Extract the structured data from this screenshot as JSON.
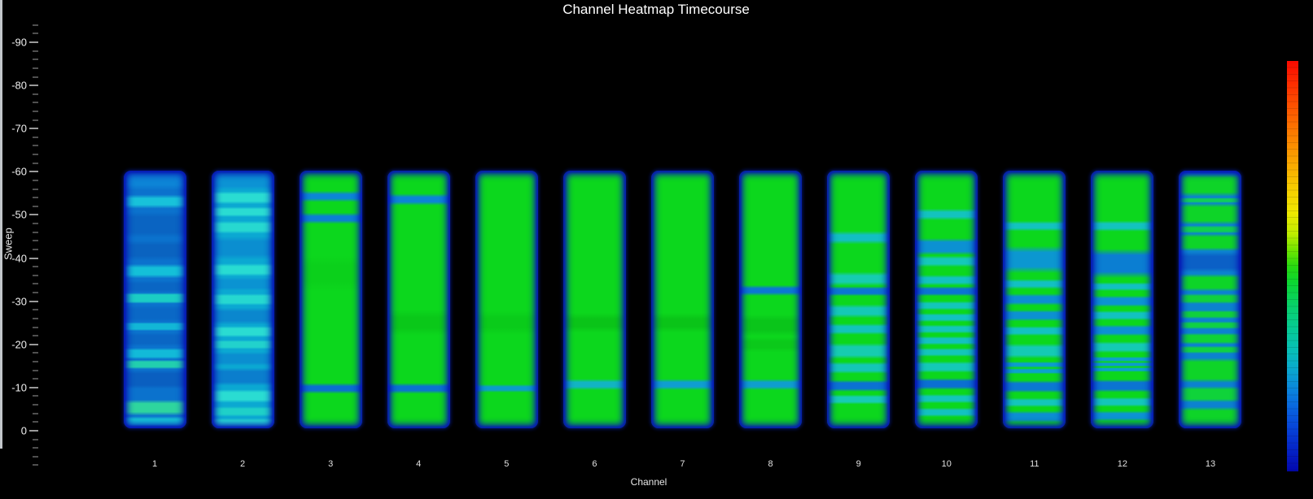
{
  "title": "Channel Heatmap Timecourse",
  "axes": {
    "y_label": "Sweep",
    "x_label": "Channel",
    "y_ticks": [
      "-90",
      "-80",
      "-70",
      "-60",
      "-50",
      "-40",
      "-30",
      "-20",
      "-10",
      "0"
    ],
    "x_ticks": [
      "1",
      "2",
      "3",
      "4",
      "5",
      "6",
      "7",
      "8",
      "9",
      "10",
      "11",
      "12",
      "13"
    ],
    "y_direction": "reversed",
    "y_minor_per_major": 5
  },
  "colorbar": {
    "position": "right",
    "colormap": "jet (red = high, dark blue = low)",
    "stops": [
      {
        "p": 0,
        "c": "#fa0a00"
      },
      {
        "p": 5,
        "c": "#fc2a00"
      },
      {
        "p": 11,
        "c": "#fc5200"
      },
      {
        "p": 18,
        "c": "#fb7e00"
      },
      {
        "p": 25,
        "c": "#faa800"
      },
      {
        "p": 31,
        "c": "#f6cc00"
      },
      {
        "p": 37,
        "c": "#eee800"
      },
      {
        "p": 42,
        "c": "#c0ec00"
      },
      {
        "p": 46,
        "c": "#72e400"
      },
      {
        "p": 50,
        "c": "#28da10"
      },
      {
        "p": 54,
        "c": "#0cd632"
      },
      {
        "p": 60,
        "c": "#08d06e"
      },
      {
        "p": 66,
        "c": "#06ca9a"
      },
      {
        "p": 71,
        "c": "#08beba"
      },
      {
        "p": 76,
        "c": "#0aa2d2"
      },
      {
        "p": 81,
        "c": "#0a7ede"
      },
      {
        "p": 86,
        "c": "#085ade"
      },
      {
        "p": 91,
        "c": "#063ad4"
      },
      {
        "p": 96,
        "c": "#041cc0"
      },
      {
        "p": 100,
        "c": "#0208ae"
      }
    ]
  },
  "chart_data": {
    "type": "heatmap",
    "title": "Channel Heatmap Timecourse",
    "xlabel": "Channel",
    "ylabel": "Sweep",
    "x": [
      1,
      2,
      3,
      4,
      5,
      6,
      7,
      8,
      9,
      10,
      11,
      12,
      13
    ],
    "ylim_axis": [
      -94,
      9
    ],
    "data_sweep_extent": [
      -60,
      0
    ],
    "grid": false,
    "legend_position": "none",
    "colormap": "jet, red=high / blue=low; band positions given as fraction of column (0=sweep -60 top, 1=sweep 0 bottom)",
    "columns": [
      {
        "channel": 1,
        "base": "#0b72cd",
        "bands": [
          {
            "at": 0.03,
            "w": 0.025,
            "c": "#0d84d6",
            "s": 0.02
          },
          {
            "at": 0.12,
            "w": 0.012,
            "c": "#18c2da",
            "s": 0.015
          },
          {
            "at": 0.21,
            "w": 0.03,
            "c": "#0a64c2",
            "s": 0.02
          },
          {
            "at": 0.31,
            "w": 0.02,
            "c": "#0a63c0",
            "s": 0.02
          },
          {
            "at": 0.39,
            "w": 0.013,
            "c": "#14c0d8",
            "s": 0.015
          },
          {
            "at": 0.45,
            "w": 0.012,
            "c": "#0a66c4",
            "s": 0.012
          },
          {
            "at": 0.495,
            "w": 0.013,
            "c": "#1bcdc4",
            "s": 0.008
          },
          {
            "at": 0.555,
            "w": 0.018,
            "c": "#0a68c6",
            "s": 0.015
          },
          {
            "at": 0.605,
            "w": 0.01,
            "c": "#12b6d6",
            "s": 0.007
          },
          {
            "at": 0.655,
            "w": 0.015,
            "c": "#0a66c4",
            "s": 0.012
          },
          {
            "at": 0.71,
            "w": 0.012,
            "c": "#12bad8",
            "s": 0.01
          },
          {
            "at": 0.752,
            "w": 0.01,
            "c": "#22cfae",
            "s": 0.008
          },
          {
            "at": 0.81,
            "w": 0.022,
            "c": "#0a5fc0",
            "s": 0.015
          },
          {
            "at": 0.92,
            "w": 0.016,
            "c": "#2ed59e",
            "s": 0.015
          },
          {
            "at": 0.975,
            "w": 0.01,
            "c": "#16c4d4",
            "s": 0.012
          }
        ]
      },
      {
        "channel": 2,
        "base": "#0ba8d2",
        "bands": [
          {
            "at": 0.04,
            "w": 0.02,
            "c": "#0c93d4",
            "s": 0.015
          },
          {
            "at": 0.105,
            "w": 0.013,
            "c": "#2adcd2",
            "s": 0.012
          },
          {
            "at": 0.16,
            "w": 0.01,
            "c": "#2adcd2",
            "s": 0.01
          },
          {
            "at": 0.22,
            "w": 0.013,
            "c": "#27d8d0",
            "s": 0.012
          },
          {
            "at": 0.3,
            "w": 0.025,
            "c": "#0b8ed0",
            "s": 0.02
          },
          {
            "at": 0.385,
            "w": 0.013,
            "c": "#28dcd2",
            "s": 0.012
          },
          {
            "at": 0.44,
            "w": 0.014,
            "c": "#0b93d2",
            "s": 0.012
          },
          {
            "at": 0.5,
            "w": 0.013,
            "c": "#26d8d0",
            "s": 0.01
          },
          {
            "at": 0.565,
            "w": 0.018,
            "c": "#0b87ce",
            "s": 0.015
          },
          {
            "at": 0.625,
            "w": 0.012,
            "c": "#2adcd2",
            "s": 0.01
          },
          {
            "at": 0.675,
            "w": 0.01,
            "c": "#22d2cc",
            "s": 0.008
          },
          {
            "at": 0.73,
            "w": 0.015,
            "c": "#0b8ed0",
            "s": 0.012
          },
          {
            "at": 0.8,
            "w": 0.02,
            "c": "#0b7ecd",
            "s": 0.015
          },
          {
            "at": 0.875,
            "w": 0.014,
            "c": "#2adcd2",
            "s": 0.012
          },
          {
            "at": 0.935,
            "w": 0.01,
            "c": "#1fd0c8",
            "s": 0.01
          },
          {
            "at": 0.98,
            "w": 0.01,
            "c": "#28dcd2",
            "s": 0.01
          }
        ]
      },
      {
        "channel": 3,
        "base": "#0cd71d",
        "bands": [
          {
            "at": 0.1,
            "w": 0.008,
            "c": "#0c86d6",
            "s": 0.014
          },
          {
            "at": 0.185,
            "w": 0.008,
            "c": "#0c7fd4",
            "s": 0.014
          },
          {
            "at": 0.4,
            "w": 0.03,
            "c": "#0bd01b",
            "s": 0.04
          },
          {
            "at": 0.845,
            "w": 0.008,
            "c": "#0b6fd0",
            "s": 0.013
          }
        ]
      },
      {
        "channel": 4,
        "base": "#0cd71d",
        "bands": [
          {
            "at": 0.112,
            "w": 0.009,
            "c": "#0c84d6",
            "s": 0.014
          },
          {
            "at": 0.59,
            "w": 0.02,
            "c": "#0ac819",
            "s": 0.03
          },
          {
            "at": 0.845,
            "w": 0.008,
            "c": "#0b72d0",
            "s": 0.013
          }
        ]
      },
      {
        "channel": 5,
        "base": "#0cd71d",
        "bands": [
          {
            "at": 0.59,
            "w": 0.018,
            "c": "#0acb1a",
            "s": 0.03
          },
          {
            "at": 0.845,
            "w": 0.006,
            "c": "#0c9ccc",
            "s": 0.01
          }
        ]
      },
      {
        "channel": 6,
        "base": "#0cd71d",
        "bands": [
          {
            "at": 0.59,
            "w": 0.014,
            "c": "#0ac418",
            "s": 0.025
          },
          {
            "at": 0.83,
            "w": 0.009,
            "c": "#12b4c2",
            "s": 0.013
          }
        ]
      },
      {
        "channel": 7,
        "base": "#0cd71d",
        "bands": [
          {
            "at": 0.59,
            "w": 0.014,
            "c": "#0ac418",
            "s": 0.025
          },
          {
            "at": 0.83,
            "w": 0.009,
            "c": "#0f9ed0",
            "s": 0.013
          }
        ]
      },
      {
        "channel": 8,
        "base": "#0cd71d",
        "bands": [
          {
            "at": 0.465,
            "w": 0.008,
            "c": "#0b78d2",
            "s": 0.013
          },
          {
            "at": 0.6,
            "w": 0.018,
            "c": "#0ac51a",
            "s": 0.025
          },
          {
            "at": 0.675,
            "w": 0.012,
            "c": "#0bc91a",
            "s": 0.018
          },
          {
            "at": 0.83,
            "w": 0.009,
            "c": "#0f9ecd",
            "s": 0.013
          }
        ]
      },
      {
        "channel": 9,
        "base": "#0cd71d",
        "bands": [
          {
            "at": 0.26,
            "w": 0.01,
            "c": "#12bfc2",
            "s": 0.016
          },
          {
            "at": 0.42,
            "w": 0.012,
            "c": "#16ccb2",
            "s": 0.016
          },
          {
            "at": 0.468,
            "w": 0.009,
            "c": "#0b76d2",
            "s": 0.01
          },
          {
            "at": 0.545,
            "w": 0.012,
            "c": "#14c9b6",
            "s": 0.015
          },
          {
            "at": 0.615,
            "w": 0.01,
            "c": "#12c4bc",
            "s": 0.012
          },
          {
            "at": 0.7,
            "w": 0.016,
            "c": "#16ccb0",
            "s": 0.015
          },
          {
            "at": 0.765,
            "w": 0.011,
            "c": "#14c6b8",
            "s": 0.012
          },
          {
            "at": 0.835,
            "w": 0.011,
            "c": "#0b72d2",
            "s": 0.012
          },
          {
            "at": 0.888,
            "w": 0.009,
            "c": "#16ccb4",
            "s": 0.01
          }
        ]
      },
      {
        "channel": 10,
        "base": "#0cd71d",
        "bands": [
          {
            "at": 0.17,
            "w": 0.009,
            "c": "#13c3be",
            "s": 0.014
          },
          {
            "at": 0.295,
            "w": 0.018,
            "c": "#0c91d2",
            "s": 0.015
          },
          {
            "at": 0.352,
            "w": 0.01,
            "c": "#14c9b8",
            "s": 0.012
          },
          {
            "at": 0.425,
            "w": 0.009,
            "c": "#12c3c0",
            "s": 0.012
          },
          {
            "at": 0.468,
            "w": 0.009,
            "c": "#0b74d2",
            "s": 0.01
          },
          {
            "at": 0.524,
            "w": 0.008,
            "c": "#13c6ba",
            "s": 0.01
          },
          {
            "at": 0.57,
            "w": 0.008,
            "c": "#12c2c0",
            "s": 0.009
          },
          {
            "at": 0.615,
            "w": 0.008,
            "c": "#13c6ba",
            "s": 0.009
          },
          {
            "at": 0.66,
            "w": 0.008,
            "c": "#12c2c0",
            "s": 0.009
          },
          {
            "at": 0.705,
            "w": 0.008,
            "c": "#13c6ba",
            "s": 0.009
          },
          {
            "at": 0.762,
            "w": 0.011,
            "c": "#14c9b6",
            "s": 0.011
          },
          {
            "at": 0.828,
            "w": 0.011,
            "c": "#0b6fd2",
            "s": 0.012
          },
          {
            "at": 0.885,
            "w": 0.008,
            "c": "#13c6ba",
            "s": 0.01
          },
          {
            "at": 0.938,
            "w": 0.008,
            "c": "#12c2c0",
            "s": 0.01
          }
        ]
      },
      {
        "channel": 11,
        "base": "#0cd71d",
        "bands": [
          {
            "at": 0.215,
            "w": 0.008,
            "c": "#13c3be",
            "s": 0.012
          },
          {
            "at": 0.345,
            "w": 0.028,
            "c": "#0c97d0",
            "s": 0.025
          },
          {
            "at": 0.44,
            "w": 0.008,
            "c": "#12c0c2",
            "s": 0.012
          },
          {
            "at": 0.5,
            "w": 0.011,
            "c": "#0c8ed2",
            "s": 0.012
          },
          {
            "at": 0.562,
            "w": 0.011,
            "c": "#0c91d2",
            "s": 0.011
          },
          {
            "at": 0.622,
            "w": 0.009,
            "c": "#12c2c0",
            "s": 0.01
          },
          {
            "at": 0.7,
            "w": 0.015,
            "c": "#14cab4",
            "s": 0.014
          },
          {
            "at": 0.753,
            "w": 0.005,
            "c": "#0c9ccd",
            "s": 0.007
          },
          {
            "at": 0.778,
            "w": 0.005,
            "c": "#0ca2cb",
            "s": 0.006
          },
          {
            "at": 0.838,
            "w": 0.012,
            "c": "#0b78d2",
            "s": 0.012
          },
          {
            "at": 0.9,
            "w": 0.008,
            "c": "#13c6ba",
            "s": 0.01
          },
          {
            "at": 0.955,
            "w": 0.011,
            "c": "#0c8ed2",
            "s": 0.012
          }
        ]
      },
      {
        "channel": 12,
        "base": "#0cd71d",
        "bands": [
          {
            "at": 0.215,
            "w": 0.009,
            "c": "#13c3be",
            "s": 0.012
          },
          {
            "at": 0.36,
            "w": 0.032,
            "c": "#0b7ed2",
            "s": 0.025
          },
          {
            "at": 0.45,
            "w": 0.007,
            "c": "#12c0c2",
            "s": 0.01
          },
          {
            "at": 0.507,
            "w": 0.011,
            "c": "#0c93d2",
            "s": 0.011
          },
          {
            "at": 0.562,
            "w": 0.009,
            "c": "#12c2c0",
            "s": 0.01
          },
          {
            "at": 0.62,
            "w": 0.011,
            "c": "#0c91d2",
            "s": 0.011
          },
          {
            "at": 0.685,
            "w": 0.011,
            "c": "#14cab4",
            "s": 0.011
          },
          {
            "at": 0.732,
            "w": 0.004,
            "c": "#0ca2cb",
            "s": 0.006
          },
          {
            "at": 0.752,
            "w": 0.004,
            "c": "#0c9ccd",
            "s": 0.005
          },
          {
            "at": 0.772,
            "w": 0.004,
            "c": "#0ca2cb",
            "s": 0.005
          },
          {
            "at": 0.835,
            "w": 0.013,
            "c": "#0b74d2",
            "s": 0.012
          },
          {
            "at": 0.898,
            "w": 0.009,
            "c": "#13c6ba",
            "s": 0.01
          },
          {
            "at": 0.952,
            "w": 0.009,
            "c": "#0c93d2",
            "s": 0.011
          }
        ]
      },
      {
        "channel": 13,
        "base": "#0c82cf",
        "bands": [
          {
            "at": 0.055,
            "w": 0.028,
            "c": "#0ed428",
            "s": 0.018
          },
          {
            "at": 0.115,
            "w": 0.005,
            "c": "#10ce5a",
            "s": 0.006
          },
          {
            "at": 0.168,
            "w": 0.026,
            "c": "#0ed428",
            "s": 0.016
          },
          {
            "at": 0.228,
            "w": 0.007,
            "c": "#10cf50",
            "s": 0.009
          },
          {
            "at": 0.278,
            "w": 0.02,
            "c": "#0ed428",
            "s": 0.014
          },
          {
            "at": 0.355,
            "w": 0.022,
            "c": "#0b60c6",
            "s": 0.018
          },
          {
            "at": 0.435,
            "w": 0.02,
            "c": "#0ed428",
            "s": 0.014
          },
          {
            "at": 0.497,
            "w": 0.01,
            "c": "#10d13c",
            "s": 0.01
          },
          {
            "at": 0.558,
            "w": 0.008,
            "c": "#10d13c",
            "s": 0.009
          },
          {
            "at": 0.6,
            "w": 0.007,
            "c": "#10d144",
            "s": 0.008
          },
          {
            "at": 0.652,
            "w": 0.012,
            "c": "#0fd336",
            "s": 0.01
          },
          {
            "at": 0.695,
            "w": 0.007,
            "c": "#10d144",
            "s": 0.008
          },
          {
            "at": 0.775,
            "w": 0.032,
            "c": "#0ed428",
            "s": 0.016
          },
          {
            "at": 0.868,
            "w": 0.018,
            "c": "#0fd33a",
            "s": 0.013
          },
          {
            "at": 0.962,
            "w": 0.03,
            "c": "#0ed428",
            "s": 0.015
          }
        ]
      }
    ]
  }
}
